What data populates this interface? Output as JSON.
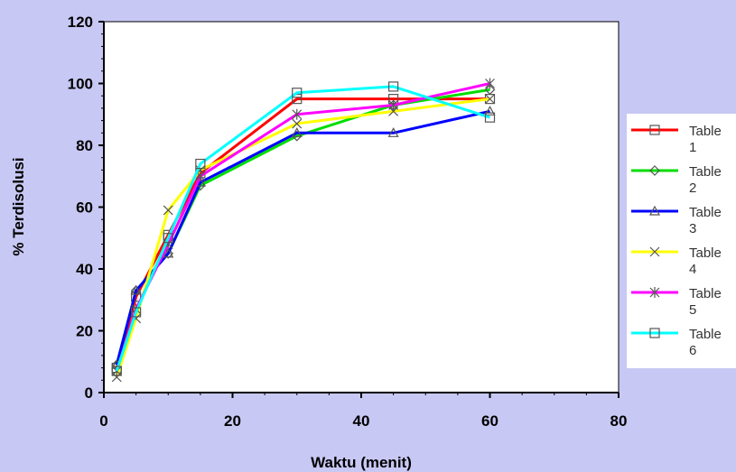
{
  "chart_data": {
    "type": "line",
    "xlabel": "Waktu (menit)",
    "ylabel": "% Terdisolusi",
    "xlim": [
      0,
      80
    ],
    "ylim": [
      0,
      120
    ],
    "x_ticks": [
      0,
      20,
      40,
      60,
      80
    ],
    "y_ticks": [
      0,
      20,
      40,
      60,
      80,
      100,
      120
    ],
    "grid": false,
    "legend_position": "right",
    "background_color": "#c8c8f4",
    "plot_background_color": "#ffffff",
    "x": [
      2,
      5,
      10,
      15,
      30,
      45,
      60
    ],
    "series": [
      {
        "name": "Table 1",
        "name_lines": [
          "Table",
          "1"
        ],
        "color": "#ff0000",
        "marker": "square",
        "values": [
          8,
          31,
          51,
          71,
          95,
          95,
          95
        ]
      },
      {
        "name": "Table 2",
        "name_lines": [
          "Table",
          "2"
        ],
        "color": "#00dd00",
        "marker": "diamond",
        "values": [
          9,
          33,
          45,
          67,
          83,
          93,
          98
        ]
      },
      {
        "name": "Table 3",
        "name_lines": [
          "Table",
          "3"
        ],
        "color": "#0000ff",
        "marker": "triangle",
        "values": [
          9,
          33,
          45,
          68,
          84,
          84,
          91
        ]
      },
      {
        "name": "Table 4",
        "name_lines": [
          "Table",
          "4"
        ],
        "color": "#ffff00",
        "marker": "x",
        "values": [
          5,
          24,
          59,
          72,
          87,
          91,
          95
        ]
      },
      {
        "name": "Table 5",
        "name_lines": [
          "Table",
          "5"
        ],
        "color": "#ff00ff",
        "marker": "star",
        "values": [
          7,
          27,
          48,
          70,
          90,
          93,
          100
        ]
      },
      {
        "name": "Table 6",
        "name_lines": [
          "Table",
          "6"
        ],
        "color": "#00ffff",
        "marker": "square",
        "values": [
          7,
          26,
          50,
          74,
          97,
          99,
          89
        ]
      }
    ]
  }
}
